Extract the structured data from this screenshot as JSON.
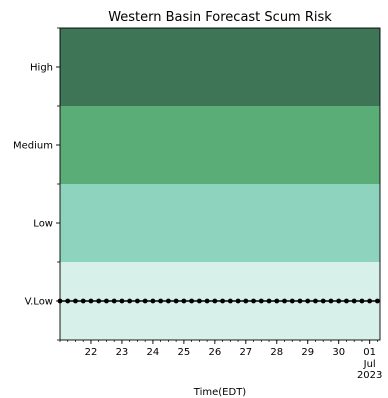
{
  "chart_data": {
    "type": "line",
    "title": "Western Basin Forecast Scum Risk",
    "xlabel": "Time(EDT)",
    "ylabel": "",
    "x_start": "2023-06-21",
    "x_end": "2023-07-01",
    "x_ticks": [
      {
        "label": "22",
        "date": "2023-06-22"
      },
      {
        "label": "23",
        "date": "2023-06-23"
      },
      {
        "label": "24",
        "date": "2023-06-24"
      },
      {
        "label": "25",
        "date": "2023-06-25"
      },
      {
        "label": "26",
        "date": "2023-06-26"
      },
      {
        "label": "27",
        "date": "2023-06-27"
      },
      {
        "label": "28",
        "date": "2023-06-28"
      },
      {
        "label": "29",
        "date": "2023-06-29"
      },
      {
        "label": "30",
        "date": "2023-06-30"
      },
      {
        "label": "01",
        "date": "2023-07-01",
        "sublabels": [
          "Jul",
          "2023"
        ]
      }
    ],
    "risk_levels": [
      {
        "label": "V.Low",
        "color": "#d7f0ea"
      },
      {
        "label": "Low",
        "color": "#8dd3bd"
      },
      {
        "label": "Medium",
        "color": "#5aad76"
      },
      {
        "label": "High",
        "color": "#3d7556"
      }
    ],
    "series": [
      {
        "level": "V.Low",
        "color": "#000000",
        "marker": "dot",
        "start": "2023-06-21T00:00",
        "end": "2023-07-01T06:00",
        "interval_hours": 6
      }
    ],
    "grid": false,
    "legend": "none"
  }
}
